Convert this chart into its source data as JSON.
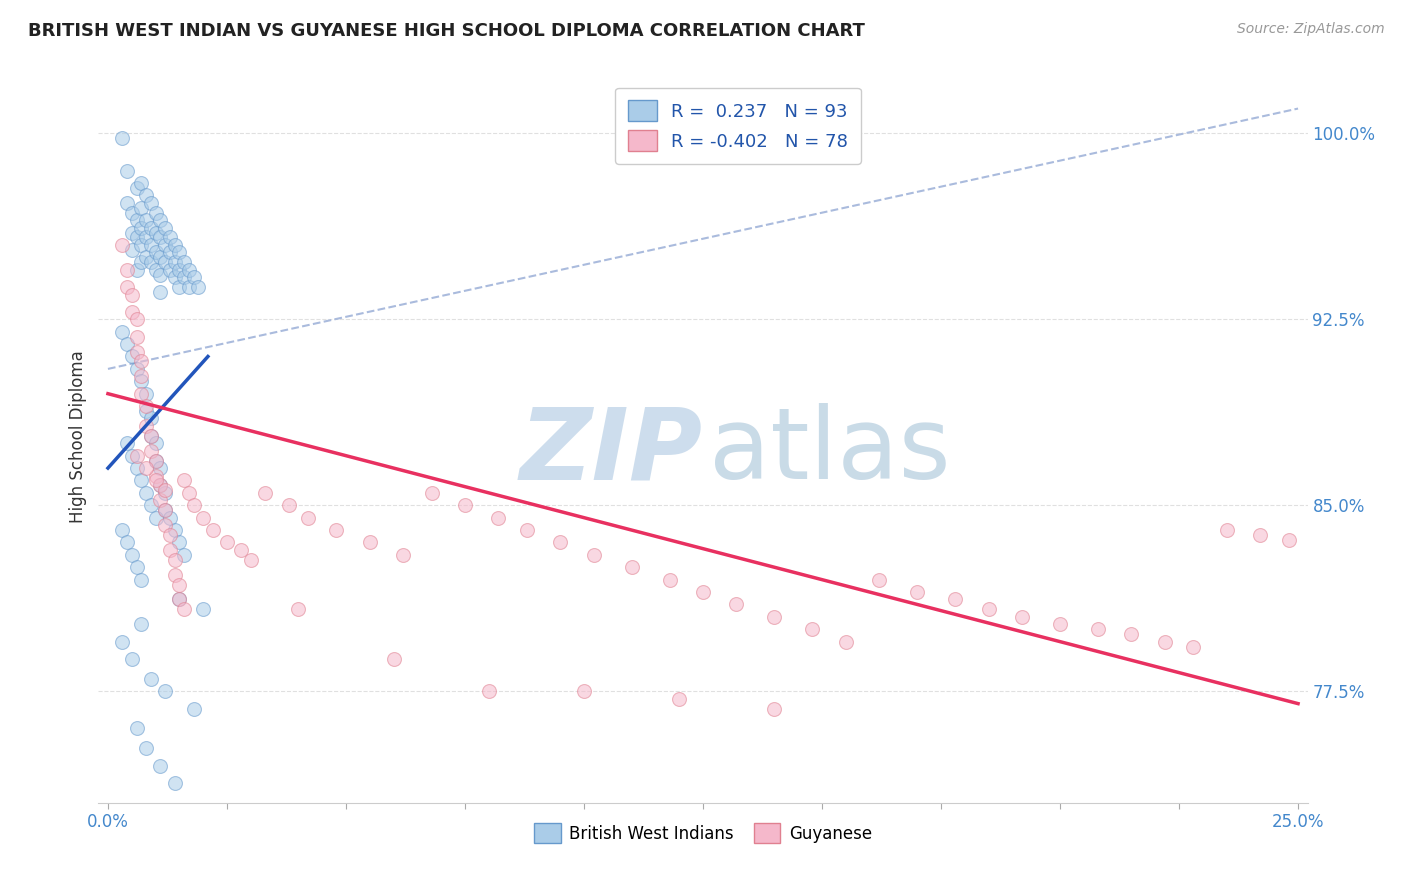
{
  "title": "BRITISH WEST INDIAN VS GUYANESE HIGH SCHOOL DIPLOMA CORRELATION CHART",
  "source": "Source: ZipAtlas.com",
  "ylabel": "High School Diploma",
  "ylabel_ticks": [
    "77.5%",
    "85.0%",
    "92.5%",
    "100.0%"
  ],
  "ylabel_tick_vals": [
    0.775,
    0.85,
    0.925,
    1.0
  ],
  "xlabel_ticks": [
    "0.0%",
    "25.0%"
  ],
  "xlabel_tick_vals": [
    0.0,
    0.25
  ],
  "xlim": [
    -0.002,
    0.252
  ],
  "ylim": [
    0.73,
    1.025
  ],
  "legend_r1": "R =  0.237",
  "legend_n1": "N = 93",
  "legend_r2": "R = -0.402",
  "legend_n2": "N = 78",
  "blue_color": "#aacce8",
  "pink_color": "#f5b8cb",
  "blue_edge": "#6699cc",
  "pink_edge": "#e08090",
  "trend_blue": "#2255bb",
  "trend_pink": "#e83060",
  "ref_line_color": "#aabbdd",
  "grid_color": "#e0e0e0",
  "marker_size": 100,
  "alpha": 0.55,
  "blue_trend": [
    0.0,
    0.021,
    0.865,
    0.91
  ],
  "pink_trend": [
    0.0,
    0.25,
    0.895,
    0.77
  ],
  "ref_line": [
    0.0,
    0.25,
    0.905,
    1.01
  ],
  "blue_x": [
    0.003,
    0.004,
    0.004,
    0.005,
    0.005,
    0.005,
    0.006,
    0.006,
    0.006,
    0.006,
    0.007,
    0.007,
    0.007,
    0.007,
    0.007,
    0.008,
    0.008,
    0.008,
    0.008,
    0.009,
    0.009,
    0.009,
    0.009,
    0.01,
    0.01,
    0.01,
    0.01,
    0.011,
    0.011,
    0.011,
    0.011,
    0.011,
    0.012,
    0.012,
    0.012,
    0.013,
    0.013,
    0.013,
    0.014,
    0.014,
    0.014,
    0.015,
    0.015,
    0.015,
    0.016,
    0.016,
    0.017,
    0.017,
    0.018,
    0.019,
    0.003,
    0.004,
    0.005,
    0.006,
    0.007,
    0.008,
    0.008,
    0.009,
    0.009,
    0.01,
    0.01,
    0.011,
    0.011,
    0.012,
    0.012,
    0.013,
    0.014,
    0.015,
    0.016,
    0.004,
    0.005,
    0.006,
    0.007,
    0.008,
    0.009,
    0.01,
    0.003,
    0.004,
    0.005,
    0.006,
    0.007,
    0.015,
    0.02,
    0.007,
    0.003,
    0.005,
    0.009,
    0.012,
    0.018,
    0.006,
    0.008,
    0.011,
    0.014
  ],
  "blue_y": [
    0.998,
    0.985,
    0.972,
    0.968,
    0.96,
    0.953,
    0.978,
    0.965,
    0.958,
    0.945,
    0.98,
    0.97,
    0.962,
    0.955,
    0.948,
    0.975,
    0.965,
    0.958,
    0.95,
    0.972,
    0.962,
    0.955,
    0.948,
    0.968,
    0.96,
    0.952,
    0.945,
    0.965,
    0.958,
    0.95,
    0.943,
    0.936,
    0.962,
    0.955,
    0.948,
    0.958,
    0.952,
    0.945,
    0.955,
    0.948,
    0.942,
    0.952,
    0.945,
    0.938,
    0.948,
    0.942,
    0.945,
    0.938,
    0.942,
    0.938,
    0.92,
    0.915,
    0.91,
    0.905,
    0.9,
    0.895,
    0.888,
    0.885,
    0.878,
    0.875,
    0.868,
    0.865,
    0.858,
    0.855,
    0.848,
    0.845,
    0.84,
    0.835,
    0.83,
    0.875,
    0.87,
    0.865,
    0.86,
    0.855,
    0.85,
    0.845,
    0.84,
    0.835,
    0.83,
    0.825,
    0.82,
    0.812,
    0.808,
    0.802,
    0.795,
    0.788,
    0.78,
    0.775,
    0.768,
    0.76,
    0.752,
    0.745,
    0.738
  ],
  "pink_x": [
    0.003,
    0.004,
    0.004,
    0.005,
    0.005,
    0.006,
    0.006,
    0.006,
    0.007,
    0.007,
    0.007,
    0.008,
    0.008,
    0.009,
    0.009,
    0.01,
    0.01,
    0.011,
    0.011,
    0.012,
    0.012,
    0.013,
    0.013,
    0.014,
    0.014,
    0.015,
    0.015,
    0.016,
    0.016,
    0.017,
    0.018,
    0.02,
    0.022,
    0.025,
    0.028,
    0.03,
    0.033,
    0.038,
    0.042,
    0.048,
    0.055,
    0.062,
    0.068,
    0.075,
    0.082,
    0.088,
    0.095,
    0.102,
    0.11,
    0.118,
    0.125,
    0.132,
    0.14,
    0.148,
    0.155,
    0.162,
    0.17,
    0.178,
    0.185,
    0.192,
    0.2,
    0.208,
    0.215,
    0.222,
    0.228,
    0.235,
    0.242,
    0.248,
    0.006,
    0.008,
    0.01,
    0.012,
    0.04,
    0.06,
    0.08,
    0.1,
    0.12,
    0.14
  ],
  "pink_y": [
    0.955,
    0.945,
    0.938,
    0.935,
    0.928,
    0.925,
    0.918,
    0.912,
    0.908,
    0.902,
    0.895,
    0.89,
    0.882,
    0.878,
    0.872,
    0.868,
    0.862,
    0.858,
    0.852,
    0.848,
    0.842,
    0.838,
    0.832,
    0.828,
    0.822,
    0.818,
    0.812,
    0.808,
    0.86,
    0.855,
    0.85,
    0.845,
    0.84,
    0.835,
    0.832,
    0.828,
    0.855,
    0.85,
    0.845,
    0.84,
    0.835,
    0.83,
    0.855,
    0.85,
    0.845,
    0.84,
    0.835,
    0.83,
    0.825,
    0.82,
    0.815,
    0.81,
    0.805,
    0.8,
    0.795,
    0.82,
    0.815,
    0.812,
    0.808,
    0.805,
    0.802,
    0.8,
    0.798,
    0.795,
    0.793,
    0.84,
    0.838,
    0.836,
    0.87,
    0.865,
    0.86,
    0.856,
    0.808,
    0.788,
    0.775,
    0.775,
    0.772,
    0.768
  ]
}
